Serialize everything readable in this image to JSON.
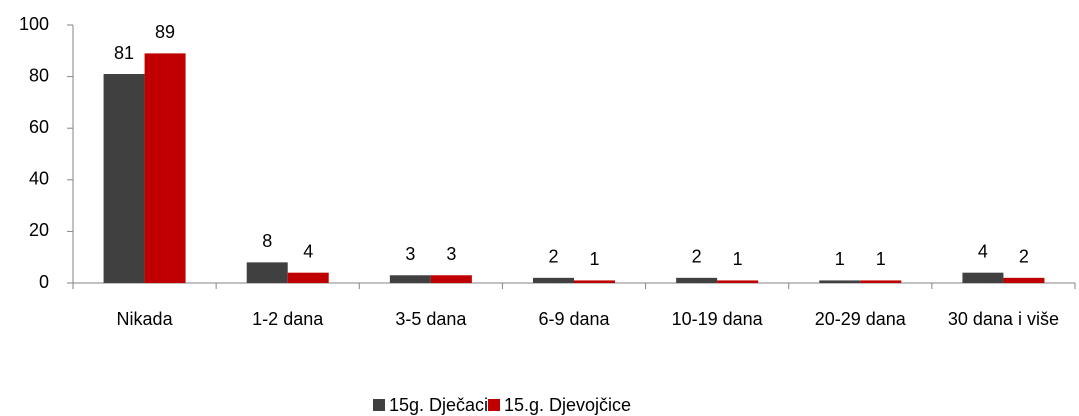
{
  "chart_data": {
    "type": "bar",
    "categories": [
      "Nikada",
      "1-2 dana",
      "3-5 dana",
      "6-9 dana",
      "10-19 dana",
      "20-29 dana",
      "30 dana i više"
    ],
    "series": [
      {
        "name": "15g. Dječaci",
        "color": "#404040",
        "values": [
          81,
          8,
          3,
          2,
          2,
          1,
          4
        ]
      },
      {
        "name": "15.g. Djevojčice",
        "color": "#c00000",
        "values": [
          89,
          4,
          3,
          1,
          1,
          1,
          2
        ]
      }
    ],
    "ylim": [
      0,
      100
    ],
    "yticks": [
      0,
      20,
      40,
      60,
      80,
      100
    ],
    "grid": false,
    "legend": "bottom"
  }
}
